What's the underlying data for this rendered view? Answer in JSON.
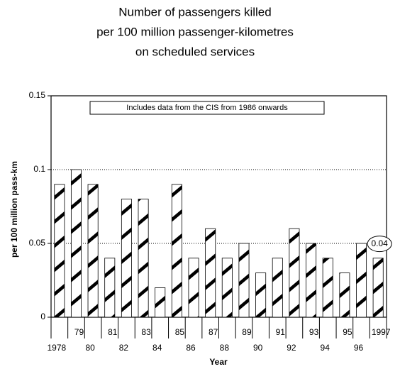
{
  "chart_data": {
    "type": "bar",
    "title": [
      "Number of passengers killed",
      "per 100 million passenger-kilometres",
      "on scheduled services"
    ],
    "annotation": "Includes data from the CIS from 1986 onwards",
    "callout": "0.04",
    "x_label": "Year",
    "y_label": "per 100 million pass-km",
    "categories": [
      "1978",
      "79",
      "80",
      "81",
      "82",
      "83",
      "84",
      "85",
      "86",
      "87",
      "88",
      "89",
      "90",
      "91",
      "92",
      "93",
      "94",
      "95",
      "96",
      "1997"
    ],
    "values": [
      0.09,
      0.1,
      0.09,
      0.04,
      0.08,
      0.08,
      0.02,
      0.09,
      0.04,
      0.06,
      0.04,
      0.05,
      0.03,
      0.04,
      0.06,
      0.05,
      0.04,
      0.03,
      0.05,
      0.04
    ],
    "color": "#000000",
    "ylim": [
      0,
      0.15
    ],
    "yticks": [
      0,
      0.05,
      0.1,
      0.15
    ],
    "grid": true
  }
}
